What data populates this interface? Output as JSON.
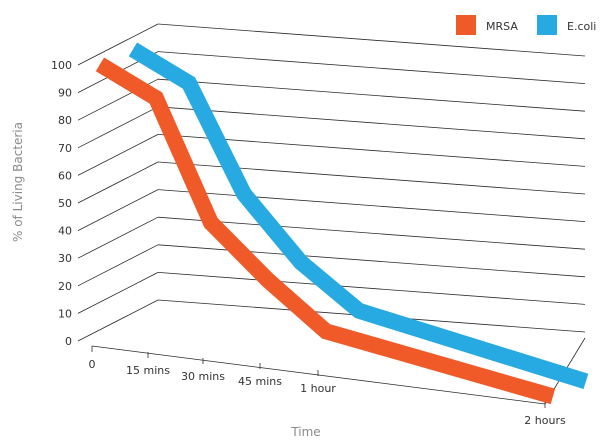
{
  "chart_data": {
    "type": "line",
    "title": "",
    "xlabel": "Time",
    "ylabel": "% of Living Bacteria",
    "ylim": [
      0,
      100
    ],
    "yticks": [
      0,
      10,
      20,
      30,
      40,
      50,
      60,
      70,
      80,
      90,
      100
    ],
    "categories": [
      "0",
      "15 mins",
      "30 mins",
      "45 mins",
      "1 hour",
      "2 hours"
    ],
    "legend_position": "top-right",
    "grid": true,
    "series": [
      {
        "name": "MRSA",
        "color": "#f05a28",
        "values": [
          100,
          90,
          47,
          28,
          12,
          0
        ]
      },
      {
        "name": "E.coli",
        "color": "#27aae1",
        "values": [
          100,
          90,
          52,
          29,
          14,
          0
        ]
      }
    ]
  }
}
